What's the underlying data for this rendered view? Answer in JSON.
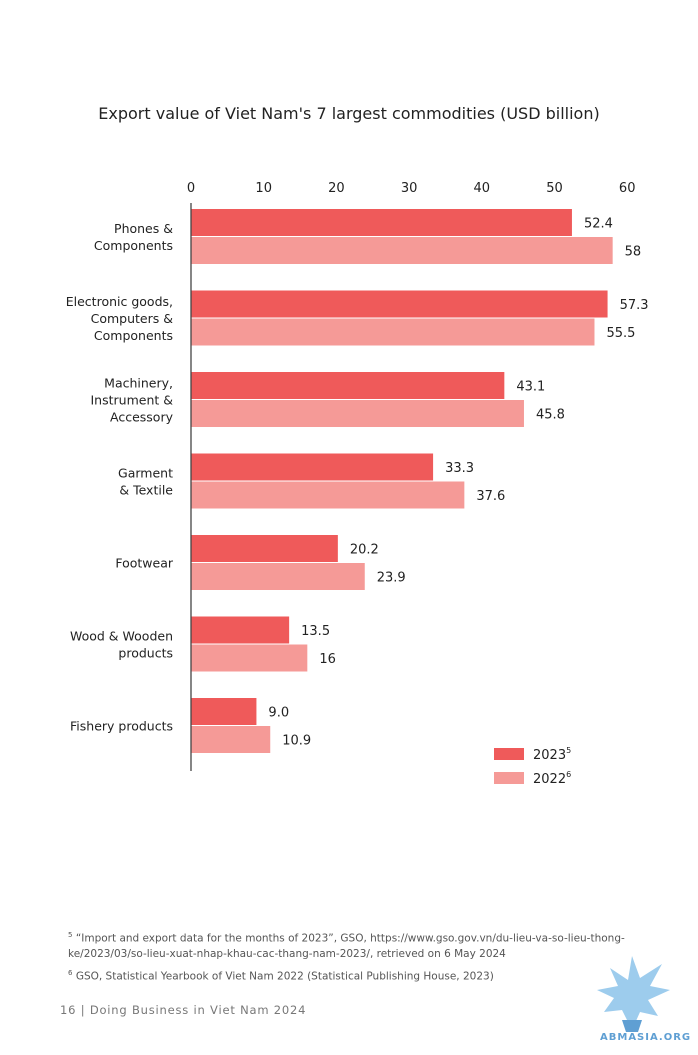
{
  "chart_data": {
    "type": "bar",
    "orientation": "horizontal",
    "title": "Export value of Viet Nam's 7 largest commodities (USD billion)",
    "categories": [
      [
        "Phones &",
        "Components"
      ],
      [
        "Electronic goods,",
        "Computers &",
        "Components"
      ],
      [
        "Machinery,",
        "Instrument &",
        "Accessory"
      ],
      [
        "Garment",
        "& Textile"
      ],
      [
        "Footwear"
      ],
      [
        "Wood & Wooden",
        "products"
      ],
      [
        "Fishery products"
      ]
    ],
    "series": [
      {
        "name": "2023",
        "sup": "5",
        "color": "#ef5a5a",
        "values": [
          52.4,
          57.3,
          43.1,
          33.3,
          20.2,
          13.5,
          9.0
        ],
        "labels": [
          "52.4",
          "57.3",
          "43.1",
          "33.3",
          "20.2",
          "13.5",
          "9.0"
        ]
      },
      {
        "name": "2022",
        "sup": "6",
        "color": "#f59a97",
        "values": [
          58,
          55.5,
          45.8,
          37.6,
          23.9,
          16,
          10.9
        ],
        "labels": [
          "58",
          "55.5",
          "45.8",
          "37.6",
          "23.9",
          "16",
          "10.9"
        ]
      }
    ],
    "xlim": [
      0,
      60
    ],
    "xticks": [
      "0",
      "10",
      "20",
      "30",
      "40",
      "50",
      "60"
    ],
    "xaxis_position": "top",
    "grid": false,
    "legend_position": "bottom-right"
  },
  "footnotes": {
    "note5_marker": "5",
    "note5_line1": "“Import and export data for the months of 2023”, GSO, https://www.gso.gov.vn/du-lieu-va-so-lieu-thong-",
    "note5_line2": "ke/2023/03/so-lieu-xuat-nhap-khau-cac-thang-nam-2023/, retrieved on 6 May 2024",
    "note6_marker": "6",
    "note6_text": "GSO, Statistical Yearbook of Viet Nam 2022 (Statistical Publishing House, 2023)"
  },
  "footer": {
    "text": "16 | Doing Business in Viet Nam 2024"
  },
  "watermark": {
    "text": "ABMASIA.ORG",
    "icon": "griffin-logo-icon"
  }
}
